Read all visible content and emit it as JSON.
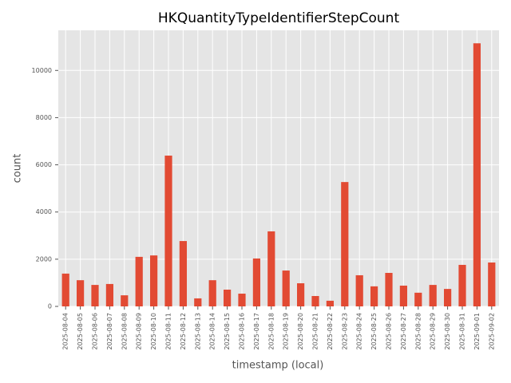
{
  "chart_data": {
    "type": "bar",
    "title": "HKQuantityTypeIdentifierStepCount",
    "x_label": "timestamp (local)",
    "y_label": "count",
    "categories": [
      "2025-08-04",
      "2025-08-05",
      "2025-08-06",
      "2025-08-07",
      "2025-08-08",
      "2025-08-09",
      "2025-08-10",
      "2025-08-11",
      "2025-08-12",
      "2025-08-13",
      "2025-08-14",
      "2025-08-15",
      "2025-08-16",
      "2025-08-17",
      "2025-08-18",
      "2025-08-19",
      "2025-08-20",
      "2025-08-21",
      "2025-08-22",
      "2025-08-23",
      "2025-08-24",
      "2025-08-25",
      "2025-08-26",
      "2025-08-27",
      "2025-08-28",
      "2025-08-29",
      "2025-08-30",
      "2025-08-31",
      "2025-09-01",
      "2025-09-02"
    ],
    "values": [
      1390,
      1110,
      910,
      950,
      470,
      2100,
      2160,
      6390,
      2770,
      340,
      1110,
      710,
      540,
      2030,
      3180,
      1520,
      980,
      440,
      240,
      5270,
      1320,
      850,
      1420,
      880,
      580,
      910,
      740,
      1760,
      11150,
      1860
    ],
    "color": "#e24a33",
    "ylim": [
      0,
      11700
    ],
    "yticks": [
      0,
      2000,
      4000,
      6000,
      8000,
      10000
    ],
    "grid": true
  }
}
